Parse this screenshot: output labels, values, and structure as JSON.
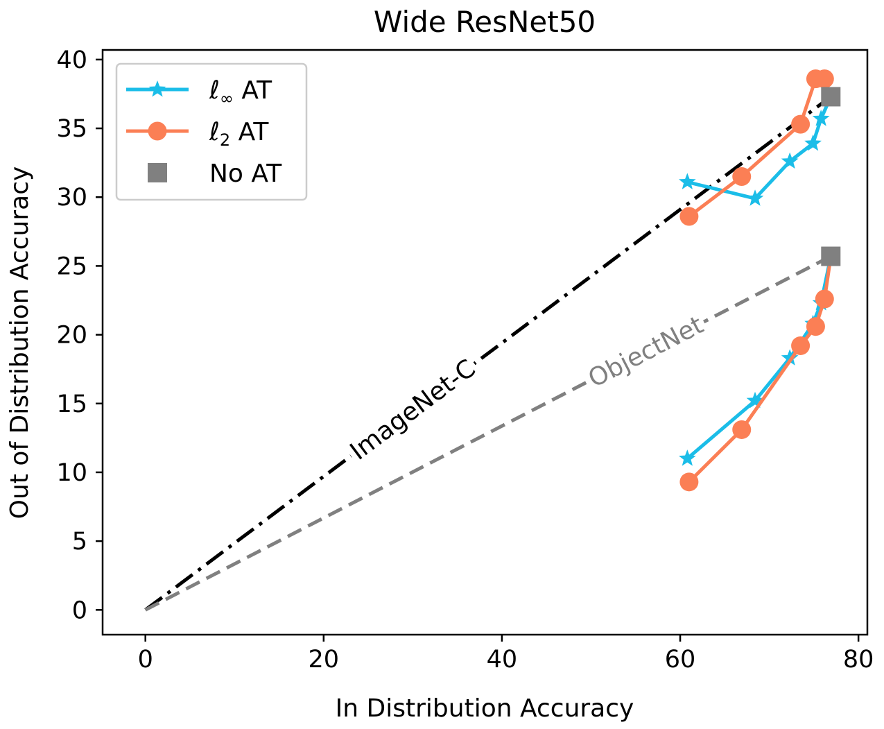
{
  "chart_data": {
    "type": "line",
    "title": "Wide ResNet50",
    "xlabel": "In Distribution Accuracy",
    "ylabel": "Out of Distribution Accuracy",
    "xlim": [
      -4.8,
      81.0
    ],
    "ylim": [
      -1.8,
      40.7
    ],
    "xticks": [
      0,
      20,
      40,
      60,
      80
    ],
    "yticks": [
      0,
      5,
      10,
      15,
      20,
      25,
      30,
      35,
      40
    ],
    "legend": {
      "placement": "top-left",
      "entries": [
        {
          "label_main": "ℓ",
          "label_sub": "∞",
          "label_rest": " AT"
        },
        {
          "label_main": "ℓ",
          "label_sub": "2",
          "label_rest": " AT"
        },
        {
          "label_main": "",
          "label_sub": "",
          "label_rest": "No AT"
        }
      ]
    },
    "colors": {
      "linf": "#1bbde8",
      "l2": "#fb7f55",
      "noat": "#808080",
      "imagenetc": "#000000",
      "objectnet": "#808080"
    },
    "reference_lines": [
      {
        "name": "ImageNet-C",
        "x": [
          0,
          76.9
        ],
        "y": [
          0,
          37.3
        ],
        "style": "dashdot",
        "label": "ImageNet-C"
      },
      {
        "name": "ObjectNet",
        "x": [
          0,
          76.9
        ],
        "y": [
          0,
          25.7
        ],
        "style": "dashed",
        "label": "ObjectNet"
      }
    ],
    "series": [
      {
        "name": "linf-imagenetc",
        "legend": "linf",
        "marker": "star",
        "x": [
          60.8,
          68.4,
          72.3,
          74.9,
          75.8,
          76.9
        ],
        "y": [
          31.1,
          29.9,
          32.6,
          33.9,
          35.7,
          37.3
        ]
      },
      {
        "name": "l2-imagenetc",
        "legend": "l2",
        "marker": "circle",
        "x": [
          61.0,
          66.9,
          73.5,
          75.2,
          76.2,
          76.9
        ],
        "y": [
          28.6,
          31.5,
          35.3,
          38.6,
          38.6,
          37.3
        ]
      },
      {
        "name": "linf-objectnet",
        "legend": "linf",
        "marker": "star",
        "x": [
          60.8,
          68.4,
          72.3,
          74.9,
          75.8,
          76.9
        ],
        "y": [
          11.0,
          15.2,
          18.3,
          20.8,
          22.3,
          25.7
        ]
      },
      {
        "name": "l2-objectnet",
        "legend": "l2",
        "marker": "circle",
        "x": [
          61.0,
          66.9,
          73.5,
          75.2,
          76.2,
          76.9
        ],
        "y": [
          9.3,
          13.1,
          19.2,
          20.6,
          22.6,
          25.7
        ]
      },
      {
        "name": "noat",
        "legend": "noat",
        "marker": "square",
        "x": [
          76.9,
          76.9
        ],
        "y": [
          37.3,
          25.7
        ]
      }
    ]
  }
}
